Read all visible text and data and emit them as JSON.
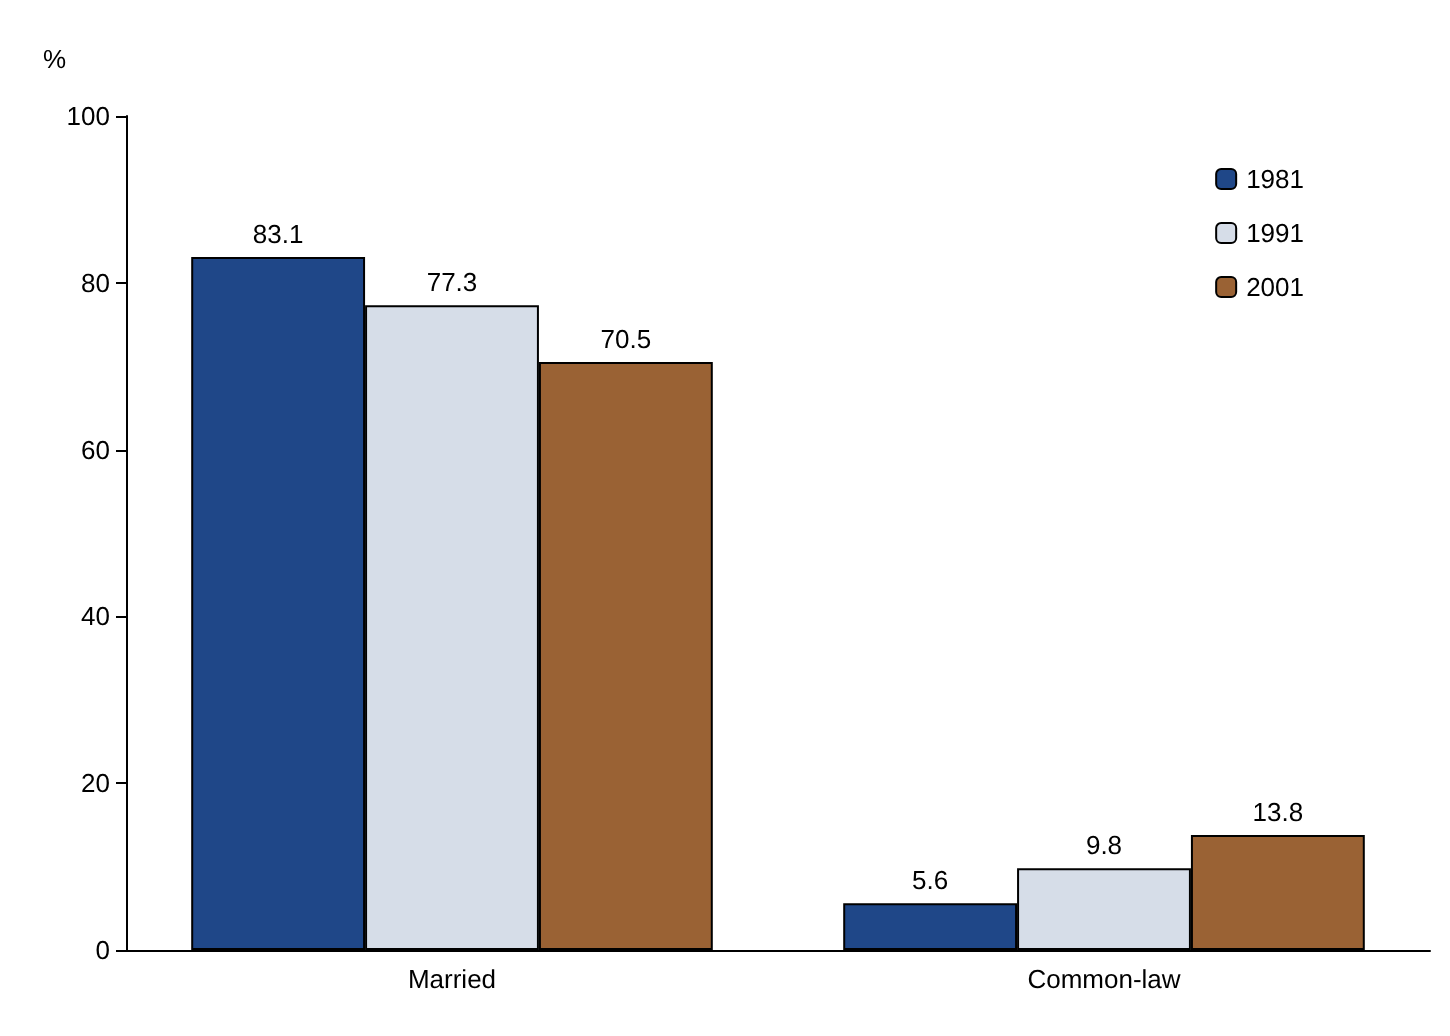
{
  "chart_data": {
    "type": "bar",
    "ylabel": "%",
    "categories": [
      "Married",
      "Common-law"
    ],
    "series": [
      {
        "name": "1981",
        "color": "#1f4788",
        "values": [
          83.1,
          5.6
        ]
      },
      {
        "name": "1991",
        "color": "#d6dde8",
        "values": [
          77.3,
          9.8
        ]
      },
      {
        "name": "2001",
        "color": "#9a6234",
        "values": [
          70.5,
          13.8
        ]
      }
    ],
    "ylim": [
      0,
      100
    ],
    "yticks": [
      0,
      20,
      40,
      60,
      80,
      100
    ],
    "data_labels": true,
    "legend": "top right",
    "grid": false
  }
}
